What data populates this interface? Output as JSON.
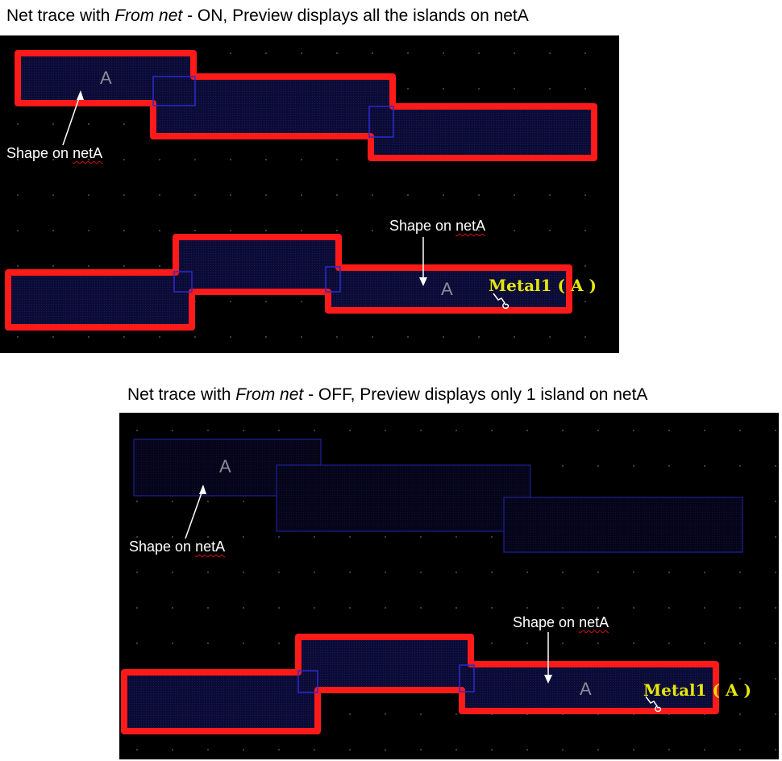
{
  "top_caption": {
    "before": "Net trace with ",
    "italic": "From net",
    "after": " - ON, Preview displays all the islands on netA"
  },
  "bottom_caption": {
    "before": "Net trace with ",
    "italic": "From net",
    "after": " - OFF, Preview displays only 1 island on netA"
  },
  "top_panel": {
    "note_left": {
      "prefix": "Shape on ",
      "underlined": "netA"
    },
    "note_right": {
      "prefix": "Shape on ",
      "underlined": "netA"
    },
    "net_letter_1": "A",
    "net_letter_2": "A",
    "metal_label": "Metal1 ( A )"
  },
  "bottom_panel": {
    "note_left": {
      "prefix": "Shape on ",
      "underlined": "netA"
    },
    "note_right": {
      "prefix": "Shape on ",
      "underlined": "netA"
    },
    "net_letter_1": "A",
    "net_letter_2": "A",
    "metal_label": "Metal1 ( A )"
  },
  "colors": {
    "highlight": "#ff1a1a",
    "shape_fill": "#0c0c3a",
    "shape_border": "#2424c8",
    "metal_label": "#e6e60a",
    "background": "#000000"
  }
}
